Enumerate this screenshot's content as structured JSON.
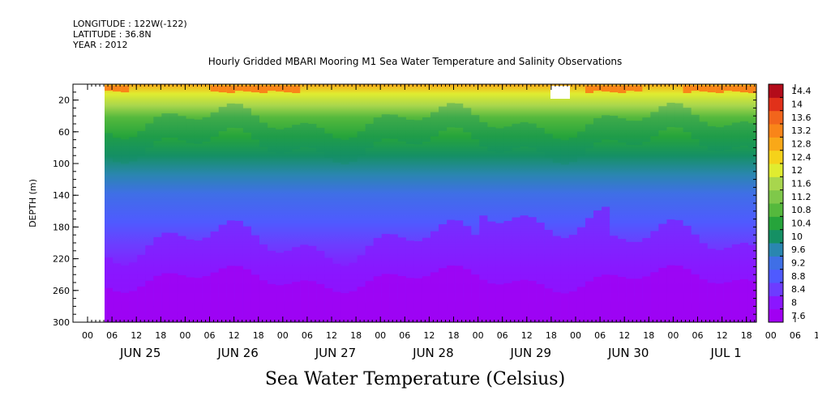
{
  "header": {
    "longitude": "LONGITUDE : 122W(-122)",
    "latitude": "LATITUDE : 36.8N",
    "year": "YEAR : 2012"
  },
  "chart_data": {
    "type": "heatmap",
    "title": "Hourly Gridded MBARI Mooring M1 Sea Water Temperature and Salinity Observations",
    "colorbar_title": "Sea Water Temperature (Celsius)",
    "ylabel": "DEPTH (m)",
    "ylim": [
      300,
      0
    ],
    "y_ticks": [
      20,
      60,
      100,
      140,
      180,
      220,
      260,
      300
    ],
    "x_hour_labels": [
      "00",
      "06",
      "12",
      "18",
      "00",
      "06",
      "12",
      "18",
      "00",
      "06",
      "12",
      "18",
      "00",
      "06",
      "12",
      "18",
      "00",
      "06",
      "12",
      "18",
      "00",
      "06",
      "12",
      "18",
      "00",
      "06",
      "12",
      "18",
      "00",
      "06",
      "12",
      "18"
    ],
    "x_day_labels": [
      "JUN 25",
      "JUN 26",
      "JUN 27",
      "JUN 28",
      "JUN 29",
      "JUN 30",
      "JUL  1"
    ],
    "colorbar_levels": [
      "7.6",
      "8",
      "8.4",
      "8.8",
      "9.2",
      "9.6",
      "10",
      "10.4",
      "10.8",
      "11.2",
      "11.6",
      "12",
      "12.4",
      "12.8",
      "13.2",
      "13.6",
      "14",
      "14.4"
    ],
    "colorbar_colors": [
      "#a100f2",
      "#8b16ff",
      "#6d3cff",
      "#4f5aff",
      "#3f6fe6",
      "#2a86b0",
      "#159064",
      "#26a43b",
      "#55b93d",
      "#7fc84a",
      "#a8d64d",
      "#e0ec30",
      "#f5d21a",
      "#f9a818",
      "#f98519",
      "#f2651c",
      "#e1311a",
      "#b30c1a"
    ],
    "depth_profile_sample": {
      "depth_m": [
        10,
        20,
        40,
        60,
        100,
        140,
        180,
        220,
        260,
        300
      ],
      "temperature_c": [
        13.2,
        12.0,
        10.8,
        10.0,
        9.4,
        8.8,
        8.5,
        8.2,
        8.0,
        7.8
      ]
    },
    "missing_data": [
      "JUN 24 00:00-JUN 24 06:00 all depths",
      "JUN 29 ~21:00 near surface"
    ]
  }
}
